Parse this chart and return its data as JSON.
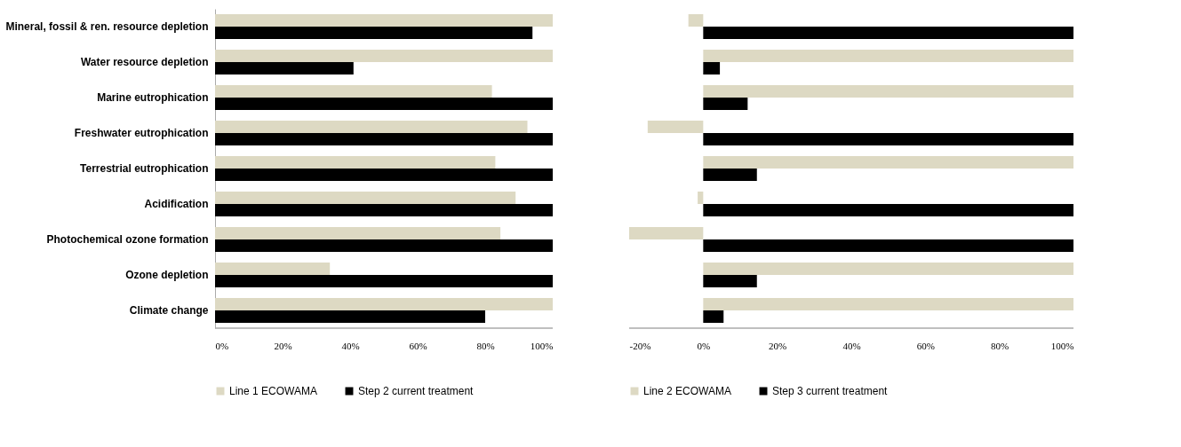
{
  "chart_data": [
    {
      "type": "bar",
      "orientation": "horizontal",
      "categories": [
        "Mineral, fossil & ren. resource depletion",
        "Water resource depletion",
        "Marine eutrophication",
        "Freshwater eutrophication",
        "Terrestrial eutrophication",
        "Acidification",
        "Photochemical ozone formation",
        "Ozone depletion",
        "Climate change"
      ],
      "series": [
        {
          "name": "Line 1 ECOWAMA",
          "color": "#ddd9c3",
          "values": [
            100,
            100,
            82,
            92.5,
            83,
            89,
            84.5,
            34,
            100
          ]
        },
        {
          "name": "Step 2 current treatment",
          "color": "#000000",
          "values": [
            94,
            41,
            100,
            100,
            100,
            100,
            100,
            100,
            80
          ]
        }
      ],
      "xlim": [
        0,
        100
      ],
      "xticks": [
        {
          "value": 0,
          "label": "0%"
        },
        {
          "value": 20,
          "label": "20%"
        },
        {
          "value": 40,
          "label": "40%"
        },
        {
          "value": 60,
          "label": "60%"
        },
        {
          "value": 80,
          "label": "80%"
        },
        {
          "value": 100,
          "label": "100%"
        }
      ],
      "legend": "bottom"
    },
    {
      "type": "bar",
      "orientation": "horizontal",
      "categories": [
        null,
        null,
        null,
        null,
        null,
        null,
        null,
        null,
        null
      ],
      "series": [
        {
          "name": "Line 2 ECOWAMA",
          "color": "#ddd9c3",
          "values": [
            -4,
            100,
            100,
            -15,
            100,
            -1.5,
            -20,
            100,
            100
          ]
        },
        {
          "name": "Step 3 current treatment",
          "color": "#000000",
          "values": [
            100,
            4.5,
            12,
            100,
            14.5,
            100,
            100,
            14.5,
            5.5
          ]
        }
      ],
      "xlim": [
        -20,
        100
      ],
      "xticks": [
        {
          "value": -20,
          "label": "-20%"
        },
        {
          "value": 0,
          "label": "0%"
        },
        {
          "value": 20,
          "label": "20%"
        },
        {
          "value": 40,
          "label": "40%"
        },
        {
          "value": 60,
          "label": "60%"
        },
        {
          "value": 80,
          "label": "80%"
        },
        {
          "value": 100,
          "label": "100%"
        }
      ],
      "tick_labels": "x",
      "legend": "bottom"
    }
  ]
}
